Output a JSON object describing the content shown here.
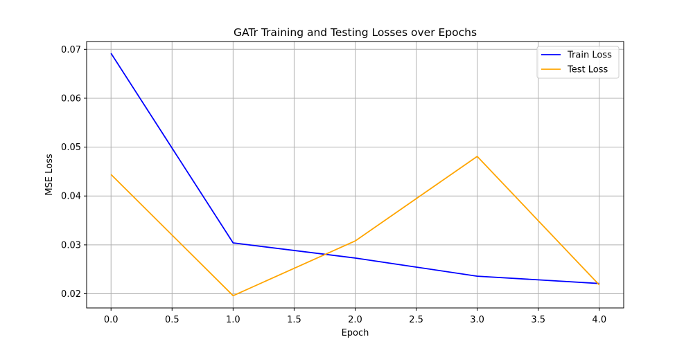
{
  "chart_data": {
    "type": "line",
    "title": "GATr Training and Testing Losses over Epochs",
    "xlabel": "Epoch",
    "ylabel": "MSE Loss",
    "x": [
      0,
      1,
      2,
      3,
      4
    ],
    "series": [
      {
        "name": "Train Loss",
        "color": "#0000ff",
        "values": [
          0.0692,
          0.0304,
          0.0273,
          0.0236,
          0.0221
        ]
      },
      {
        "name": "Test Loss",
        "color": "#ffa500",
        "values": [
          0.0444,
          0.0196,
          0.0308,
          0.0481,
          0.0218
        ]
      }
    ],
    "xlim": [
      -0.2,
      4.2
    ],
    "ylim": [
      0.0171,
      0.0716
    ],
    "xticks": [
      0.0,
      0.5,
      1.0,
      1.5,
      2.0,
      2.5,
      3.0,
      3.5,
      4.0
    ],
    "xtick_labels": [
      "0.0",
      "0.5",
      "1.0",
      "1.5",
      "2.0",
      "2.5",
      "3.0",
      "3.5",
      "4.0"
    ],
    "yticks": [
      0.02,
      0.03,
      0.04,
      0.05,
      0.06,
      0.07
    ],
    "ytick_labels": [
      "0.02",
      "0.03",
      "0.04",
      "0.05",
      "0.06",
      "0.07"
    ],
    "grid": true,
    "legend_position": "top-right"
  }
}
